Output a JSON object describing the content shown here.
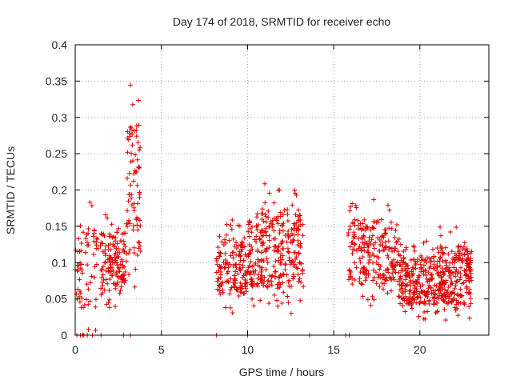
{
  "chart_data": {
    "type": "scatter",
    "title": "Day 174 of 2018, SRMTID for receiver echo",
    "xlabel": "GPS time / hours",
    "ylabel": "SRMTID / TECUs",
    "xlim": [
      0,
      24
    ],
    "ylim": [
      0,
      0.4
    ],
    "xticks": [
      0,
      5,
      10,
      15,
      20
    ],
    "xtick_labels": [
      "0",
      "5",
      "10",
      "15",
      "20"
    ],
    "yticks": [
      0,
      0.05,
      0.1,
      0.15,
      0.2,
      0.25,
      0.3,
      0.35,
      0.4
    ],
    "ytick_labels": [
      "0",
      "0.05",
      "0.1",
      "0.15",
      "0.2",
      "0.25",
      "0.3",
      "0.35",
      "0.4"
    ],
    "grid": true,
    "marker": "+",
    "series": [
      {
        "name": "SRMTID",
        "color": "#e00000",
        "clusters": [
          {
            "x_range": [
              0.0,
              1.5
            ],
            "y_range": [
              0.0,
              0.19
            ],
            "count": 70
          },
          {
            "x_range": [
              1.5,
              3.0
            ],
            "y_range": [
              0.03,
              0.17
            ],
            "count": 140
          },
          {
            "x_range": [
              3.0,
              3.8
            ],
            "y_range": [
              0.05,
              0.35
            ],
            "count": 80
          },
          {
            "x_range": [
              8.2,
              10.0
            ],
            "y_range": [
              0.03,
              0.16
            ],
            "count": 150
          },
          {
            "x_range": [
              10.0,
              11.3
            ],
            "y_range": [
              0.03,
              0.21
            ],
            "count": 130
          },
          {
            "x_range": [
              11.3,
              13.3
            ],
            "y_range": [
              0.03,
              0.2
            ],
            "count": 170
          },
          {
            "x_range": [
              15.8,
              18.8
            ],
            "y_range": [
              0.04,
              0.19
            ],
            "count": 230
          },
          {
            "x_range": [
              18.8,
              21.0
            ],
            "y_range": [
              0.02,
              0.13
            ],
            "count": 230
          },
          {
            "x_range": [
              21.0,
              23.0
            ],
            "y_range": [
              0.015,
              0.15
            ],
            "count": 230
          }
        ],
        "zero_points_x": [
          0.1,
          0.3,
          0.5,
          0.7,
          1.0,
          1.5,
          2.8,
          3.2,
          8.2,
          10.0,
          13.6,
          15.7,
          15.9
        ]
      }
    ]
  }
}
